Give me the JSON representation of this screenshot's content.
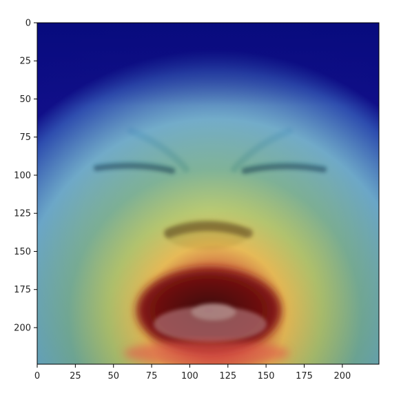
{
  "figure": {
    "description": "Face image with Grad-CAM style heatmap overlay (jet colormap) displayed in a matplotlib axes",
    "image_size": [
      224,
      224
    ],
    "colormap": "jet",
    "colors": {
      "low": "#00008f",
      "mid_low": "#2f8fd8",
      "mid": "#66b8a0",
      "mid_high": "#e7d64a",
      "high": "#8a1212"
    }
  },
  "axes": {
    "x_ticks": [
      "0",
      "25",
      "50",
      "75",
      "100",
      "125",
      "150",
      "175",
      "200"
    ],
    "y_ticks": [
      "0",
      "25",
      "50",
      "75",
      "100",
      "125",
      "150",
      "175",
      "200"
    ],
    "xlim": [
      0,
      224
    ],
    "ylim": [
      224,
      0
    ],
    "grid": false
  }
}
